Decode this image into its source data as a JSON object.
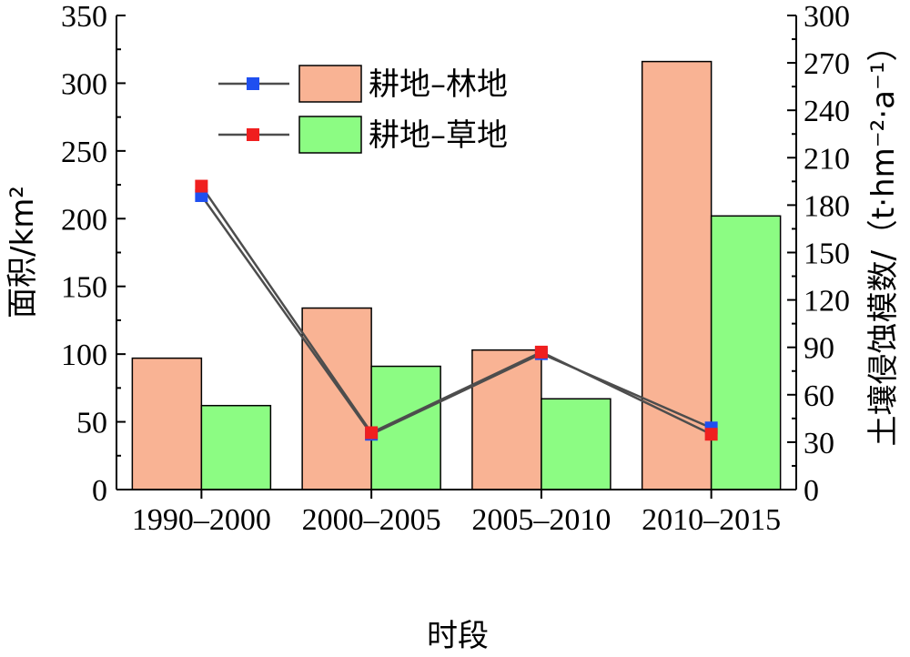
{
  "chart_data": {
    "type": "bar",
    "categories": [
      "1990–2000",
      "2000–2005",
      "2005–2010",
      "2010–2015"
    ],
    "xlabel": "时段",
    "ylabel_left": "面积/km²",
    "ylabel_right": "土壤侵蚀模数/（t·hm⁻²·a⁻¹）",
    "ylim_left": [
      0,
      350
    ],
    "ylim_right": [
      0,
      300
    ],
    "yticks_left": [
      0,
      50,
      100,
      150,
      200,
      250,
      300,
      350
    ],
    "yticks_right": [
      0,
      30,
      60,
      90,
      120,
      150,
      180,
      210,
      240,
      270,
      300
    ],
    "bar_series": [
      {
        "name": "耕地–林地",
        "axis": "left",
        "color": "#F9B394",
        "values": [
          97,
          134,
          103,
          316
        ]
      },
      {
        "name": "耕地–草地",
        "axis": "left",
        "color": "#8CFC83",
        "values": [
          62,
          91,
          67,
          202
        ]
      }
    ],
    "line_series": [
      {
        "axis": "right",
        "marker_color": "#1F4FF0",
        "line_color": "#4D4D4D",
        "values": [
          186,
          35,
          86,
          39
        ]
      },
      {
        "axis": "right",
        "marker_color": "#F01F1F",
        "line_color": "#4D4D4D",
        "values": [
          192,
          36,
          87,
          35
        ]
      }
    ],
    "legend_position": "top-left",
    "grid": false
  }
}
